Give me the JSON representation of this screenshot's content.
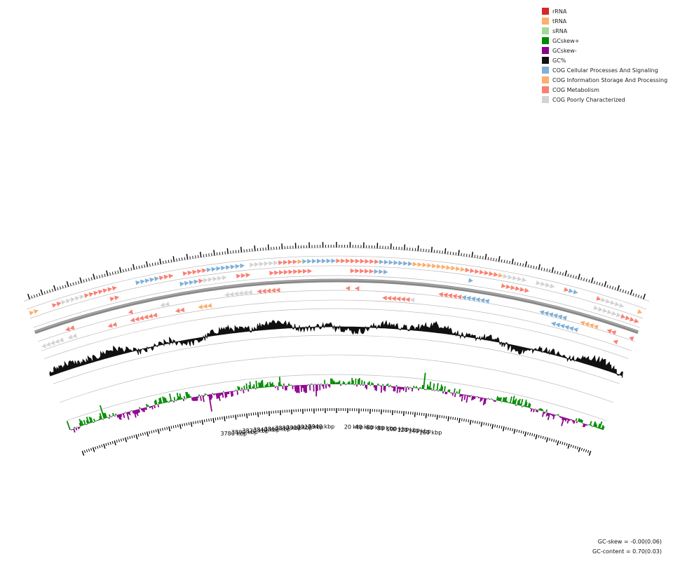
{
  "legend": [
    {
      "label": "rRNA",
      "color": "#d62728"
    },
    {
      "label": "tRNA",
      "color": "#fdae6b"
    },
    {
      "label": "sRNA",
      "color": "#a1d99b"
    },
    {
      "label": "GCskew+",
      "color": "#008b00"
    },
    {
      "label": "GCskew-",
      "color": "#8b008b"
    },
    {
      "label": "GC%",
      "color": "#111111"
    },
    {
      "label": "COG Cellular Processes And Signaling",
      "color": "#7fb0d8"
    },
    {
      "label": "COG Information Storage And Processing",
      "color": "#fdae6b"
    },
    {
      "label": "COG Metabolism",
      "color": "#fa8072"
    },
    {
      "label": "COG Poorly Characterized",
      "color": "#d3d3d3"
    }
  ],
  "ticks": {
    "left": [
      "3780 kbp",
      "3800 kbp",
      "3820 kbp",
      "3840 kbp",
      "3860 kbp",
      "3880 kbp",
      "3900 kbp",
      "3920 kbp",
      "3940 kbp"
    ],
    "right": [
      "20 kbp",
      "40 kbp",
      "60 kbp",
      "80 kbp",
      "100 kbp",
      "120 kbp",
      "140 kbp",
      "160 kbp"
    ]
  },
  "stats": {
    "gc_skew": "GC-skew = -0.00(0.06)",
    "gc_content": "GC-content = 0.70(0.03)"
  },
  "colors": {
    "cellular": "#7fb0d8",
    "information": "#fdae6b",
    "metabolism": "#fa8072",
    "poorly": "#d3d3d3",
    "gc": "#111111",
    "skew_pos": "#008b00",
    "skew_neg": "#8b008b",
    "backbone": "#888888",
    "ring": "#bbbbbb"
  }
}
